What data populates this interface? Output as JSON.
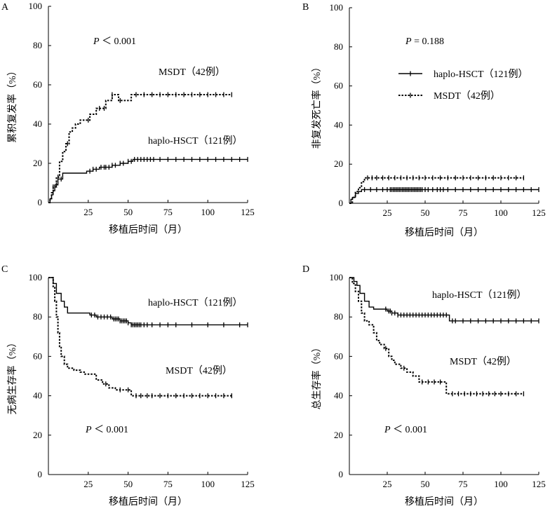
{
  "chart_data": [
    {
      "panel": "A",
      "type": "line",
      "ylabel": "累积复发率（%）",
      "xlabel": "移植后时间（月）",
      "xlim": [
        0,
        125
      ],
      "ylim": [
        0,
        100
      ],
      "xticks": [
        25,
        50,
        75,
        100,
        125
      ],
      "yticks": [
        0,
        20,
        40,
        60,
        80,
        100
      ],
      "annotation": {
        "p_italic": "P",
        "p_rest": "＜ 0.001"
      },
      "series": [
        {
          "name": "haplo-HSCT（121例）",
          "style": "solid",
          "steps": [
            [
              0,
              0
            ],
            [
              1,
              2
            ],
            [
              2,
              4
            ],
            [
              3,
              6
            ],
            [
              4,
              9
            ],
            [
              6,
              12
            ],
            [
              9,
              15
            ],
            [
              22,
              15
            ],
            [
              24,
              16
            ],
            [
              28,
              17
            ],
            [
              32,
              18
            ],
            [
              40,
              19
            ],
            [
              45,
              20
            ],
            [
              50,
              21
            ],
            [
              53,
              22
            ],
            [
              125,
              22
            ]
          ],
          "censors": [
            5,
            8,
            26,
            28,
            30,
            33,
            35,
            36,
            38,
            40,
            42,
            45,
            47,
            50,
            52,
            54,
            56,
            58,
            60,
            62,
            64,
            66,
            70,
            75,
            80,
            85,
            90,
            95,
            100,
            105,
            110,
            115,
            120,
            125
          ]
        },
        {
          "name": "MSDT（42例）",
          "style": "dotted",
          "steps": [
            [
              0,
              0
            ],
            [
              1,
              2
            ],
            [
              2,
              5
            ],
            [
              3,
              8
            ],
            [
              5,
              13
            ],
            [
              7,
              21
            ],
            [
              9,
              26
            ],
            [
              11,
              30
            ],
            [
              13,
              36
            ],
            [
              15,
              38
            ],
            [
              17,
              40
            ],
            [
              20,
              42
            ],
            [
              26,
              45
            ],
            [
              30,
              48
            ],
            [
              36,
              52
            ],
            [
              40,
              55
            ],
            [
              44,
              52
            ],
            [
              52,
              55
            ],
            [
              115,
              55
            ]
          ],
          "censors": [
            3,
            6,
            12,
            25,
            32,
            35,
            40,
            45,
            55,
            60,
            65,
            70,
            75,
            80,
            85,
            90,
            95,
            100,
            105,
            110,
            115
          ]
        }
      ],
      "series_labels": [
        "haplo-HSCT（121例）",
        "MSDT（42例）"
      ]
    },
    {
      "panel": "B",
      "type": "line",
      "ylabel": "非复发死亡率（%）",
      "xlabel": "移植后时间（月）",
      "xlim": [
        0,
        125
      ],
      "ylim": [
        0,
        100
      ],
      "xticks": [
        25,
        50,
        75,
        100,
        125
      ],
      "yticks": [
        0,
        20,
        40,
        60,
        80,
        100
      ],
      "annotation": {
        "p_italic": "P",
        "p_rest": " = 0.188"
      },
      "legend": [
        {
          "label": "haplo-HSCT（121例）",
          "style": "solid"
        },
        {
          "label": "MSDT（42例）",
          "style": "dotted"
        }
      ],
      "series": [
        {
          "name": "haplo-HSCT（121例）",
          "style": "solid",
          "steps": [
            [
              0,
              0
            ],
            [
              1,
              2
            ],
            [
              2,
              3
            ],
            [
              4,
              5
            ],
            [
              6,
              6
            ],
            [
              8,
              7
            ],
            [
              125,
              7
            ]
          ],
          "censors": [
            10,
            14,
            18,
            22,
            25,
            27,
            28,
            29,
            30,
            31,
            32,
            33,
            34,
            35,
            36,
            37,
            38,
            39,
            40,
            41,
            42,
            43,
            44,
            45,
            46,
            47,
            48,
            50,
            52,
            55,
            58,
            60,
            62,
            65,
            70,
            75,
            80,
            85,
            90,
            95,
            100,
            105,
            110,
            115,
            120,
            125
          ]
        },
        {
          "name": "MSDT（42例）",
          "style": "dotted",
          "steps": [
            [
              0,
              0
            ],
            [
              2,
              3
            ],
            [
              4,
              6
            ],
            [
              6,
              8
            ],
            [
              8,
              11
            ],
            [
              10,
              13
            ],
            [
              115,
              13
            ]
          ],
          "censors": [
            12,
            15,
            18,
            22,
            26,
            30,
            34,
            38,
            42,
            46,
            50,
            55,
            60,
            65,
            70,
            75,
            80,
            85,
            90,
            95,
            100,
            105,
            110,
            115
          ]
        }
      ]
    },
    {
      "panel": "C",
      "type": "line",
      "ylabel": "无病生存率（%）",
      "xlabel": "移植后时间（月）",
      "xlim": [
        0,
        125
      ],
      "ylim": [
        0,
        100
      ],
      "xticks": [
        25,
        50,
        75,
        100,
        125
      ],
      "yticks": [
        0,
        20,
        40,
        60,
        80,
        100
      ],
      "annotation": {
        "p_italic": "P",
        "p_rest": "＜ 0.001"
      },
      "series": [
        {
          "name": "haplo-HSCT（121例）",
          "style": "solid",
          "steps": [
            [
              0,
              100
            ],
            [
              3,
              97
            ],
            [
              5,
              92
            ],
            [
              8,
              88
            ],
            [
              10,
              85
            ],
            [
              12,
              82
            ],
            [
              24,
              82
            ],
            [
              26,
              81
            ],
            [
              30,
              80
            ],
            [
              40,
              79
            ],
            [
              45,
              78
            ],
            [
              50,
              77
            ],
            [
              52,
              76
            ],
            [
              125,
              76
            ]
          ],
          "censors": [
            27,
            29,
            31,
            33,
            35,
            37,
            39,
            41,
            42,
            43,
            44,
            45,
            46,
            47,
            48,
            49,
            50,
            52,
            53,
            54,
            55,
            56,
            57,
            58,
            60,
            62,
            65,
            70,
            75,
            80,
            90,
            100,
            110,
            120,
            125
          ]
        },
        {
          "name": "MSDT（42例）",
          "style": "dotted",
          "steps": [
            [
              0,
              100
            ],
            [
              3,
              95
            ],
            [
              4,
              88
            ],
            [
              5,
              80
            ],
            [
              6,
              72
            ],
            [
              7,
              65
            ],
            [
              8,
              60
            ],
            [
              10,
              56
            ],
            [
              12,
              54
            ],
            [
              16,
              53
            ],
            [
              20,
              52
            ],
            [
              23,
              51
            ],
            [
              30,
              48
            ],
            [
              34,
              46
            ],
            [
              38,
              44
            ],
            [
              42,
              43
            ],
            [
              50,
              43
            ],
            [
              52,
              40
            ],
            [
              115,
              40
            ]
          ],
          "censors": [
            36,
            45,
            50,
            55,
            58,
            62,
            65,
            70,
            75,
            80,
            85,
            90,
            95,
            100,
            105,
            110,
            115
          ]
        }
      ],
      "series_labels": [
        "haplo-HSCT（121例）",
        "MSDT（42例）"
      ]
    },
    {
      "panel": "D",
      "type": "line",
      "ylabel": "总生存率（%）",
      "xlabel": "移植后时间（月）",
      "xlim": [
        0,
        125
      ],
      "ylim": [
        0,
        100
      ],
      "xticks": [
        25,
        50,
        75,
        100,
        125
      ],
      "yticks": [
        0,
        20,
        40,
        60,
        80,
        100
      ],
      "annotation": {
        "p_italic": "P",
        "p_rest": "＜ 0.001"
      },
      "series": [
        {
          "name": "haplo-HSCT（121例）",
          "style": "solid",
          "steps": [
            [
              0,
              100
            ],
            [
              3,
              98
            ],
            [
              5,
              96
            ],
            [
              7,
              92
            ],
            [
              10,
              88
            ],
            [
              13,
              85
            ],
            [
              16,
              84
            ],
            [
              22,
              84
            ],
            [
              25,
              83
            ],
            [
              28,
              82
            ],
            [
              32,
              81
            ],
            [
              40,
              81
            ],
            [
              50,
              81
            ],
            [
              65,
              81
            ],
            [
              66,
              78
            ],
            [
              125,
              78
            ]
          ],
          "censors": [
            24,
            26,
            27,
            28,
            30,
            32,
            34,
            36,
            38,
            40,
            42,
            44,
            46,
            48,
            50,
            52,
            54,
            56,
            58,
            60,
            62,
            64,
            68,
            70,
            75,
            80,
            85,
            90,
            95,
            100,
            105,
            110,
            115,
            120,
            125
          ]
        },
        {
          "name": "MSDT（42例）",
          "style": "dotted",
          "steps": [
            [
              0,
              100
            ],
            [
              2,
              97
            ],
            [
              4,
              93
            ],
            [
              6,
              88
            ],
            [
              8,
              82
            ],
            [
              10,
              78
            ],
            [
              13,
              76
            ],
            [
              16,
              72
            ],
            [
              18,
              68
            ],
            [
              20,
              66
            ],
            [
              23,
              64
            ],
            [
              26,
              60
            ],
            [
              28,
              58
            ],
            [
              30,
              56
            ],
            [
              34,
              54
            ],
            [
              38,
              52
            ],
            [
              42,
              50
            ],
            [
              46,
              47
            ],
            [
              55,
              47
            ],
            [
              63,
              47
            ],
            [
              64,
              41
            ],
            [
              115,
              41
            ]
          ],
          "censors": [
            24,
            36,
            48,
            52,
            56,
            60,
            68,
            72,
            76,
            80,
            84,
            88,
            92,
            96,
            100,
            105,
            110,
            115
          ]
        }
      ],
      "series_labels": [
        "haplo-HSCT（121例）",
        "MSDT（42例）"
      ]
    }
  ]
}
